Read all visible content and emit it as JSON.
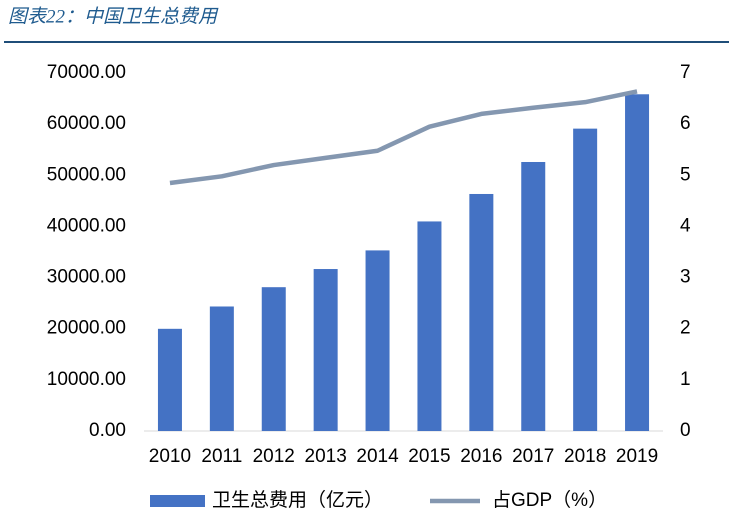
{
  "chart_data": {
    "type": "bar",
    "title": "图表22：中国卫生总费用",
    "categories": [
      "2010",
      "2011",
      "2012",
      "2013",
      "2014",
      "2015",
      "2016",
      "2017",
      "2018",
      "2019"
    ],
    "series": [
      {
        "name": "卫生总费用（亿元）",
        "color": "#4472c4",
        "values": [
          19980,
          24346,
          28119,
          31669,
          35312,
          40975,
          46345,
          52598,
          59122,
          65841
        ]
      },
      {
        "name": "占GDP（%）",
        "color": "#8497b0",
        "type": "line",
        "axis": "y2",
        "values": [
          4.85,
          4.98,
          5.2,
          5.34,
          5.48,
          5.95,
          6.2,
          6.32,
          6.43,
          6.64
        ]
      }
    ],
    "ylim": [
      0,
      70000
    ],
    "yticks": [
      {
        "value": 0,
        "label": "0.00"
      },
      {
        "value": 10000,
        "label": "10000.00"
      },
      {
        "value": 20000,
        "label": "20000.00"
      },
      {
        "value": 30000,
        "label": "30000.00"
      },
      {
        "value": 40000,
        "label": "40000.00"
      },
      {
        "value": 50000,
        "label": "50000.00"
      },
      {
        "value": 60000,
        "label": "60000.00"
      },
      {
        "value": 70000,
        "label": "70000.00"
      }
    ],
    "y2lim": [
      0,
      7
    ],
    "y2ticks": [
      0,
      1,
      2,
      3,
      4,
      5,
      6,
      7
    ],
    "grid": false,
    "legend": "bottom"
  }
}
